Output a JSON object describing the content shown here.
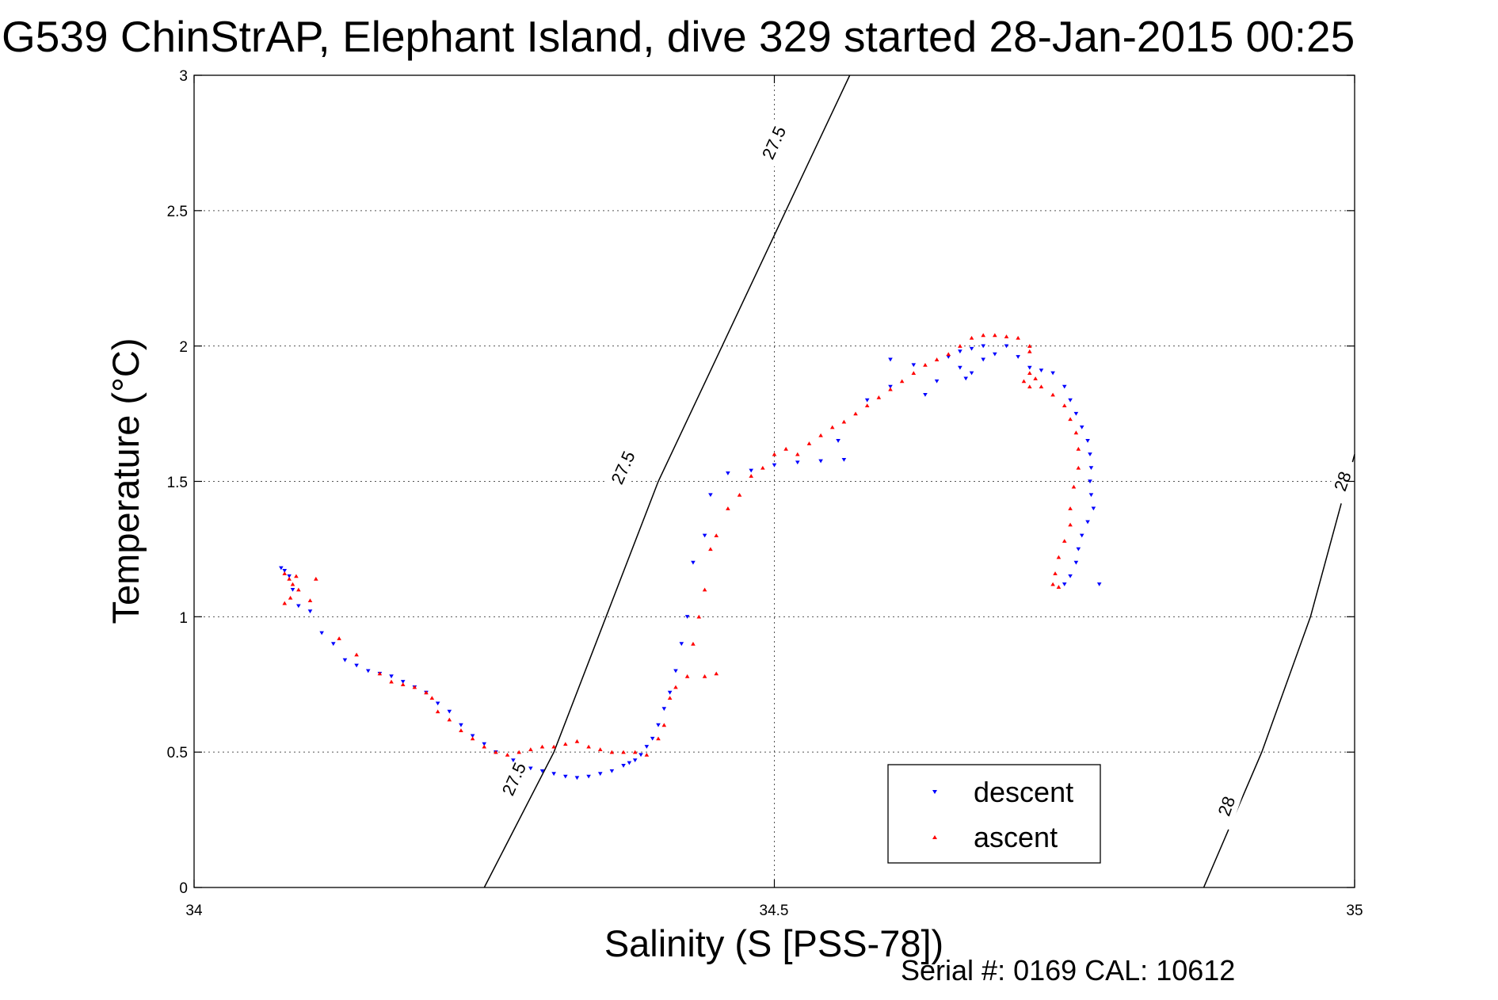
{
  "chart_data": {
    "type": "scatter",
    "title": "G539 ChinStrAP, Elephant Island, dive 329 started 28-Jan-2015 00:25",
    "xlabel": "Salinity (S [PSS-78])",
    "ylabel": "Temperature (°C)",
    "xlim": [
      34,
      35
    ],
    "ylim": [
      0,
      3
    ],
    "x_ticks": [
      "34",
      "34.5",
      "35"
    ],
    "y_ticks": [
      "0",
      "0.5",
      "1",
      "1.5",
      "2",
      "2.5",
      "3"
    ],
    "grid": true,
    "legend_position": "bottom-right",
    "footer": "Serial #: 0169 CAL: 10612",
    "colors": {
      "descent": "#0000ff",
      "ascent": "#ff0000",
      "contour": "#000000"
    },
    "density_contours": [
      {
        "label": "27.5",
        "points": [
          [
            34.25,
            0
          ],
          [
            34.31,
            0.5
          ],
          [
            34.355,
            1.0
          ],
          [
            34.4,
            1.5
          ],
          [
            34.455,
            2.0
          ],
          [
            34.51,
            2.5
          ],
          [
            34.565,
            3.0
          ]
        ],
        "label_positions": [
          [
            34.276,
            0.4
          ],
          [
            34.37,
            1.55
          ],
          [
            34.5,
            2.75
          ]
        ]
      },
      {
        "label": "28",
        "points": [
          [
            34.87,
            0
          ],
          [
            34.92,
            0.5
          ],
          [
            34.962,
            1.0
          ],
          [
            35.0,
            1.6
          ]
        ],
        "label_positions": [
          [
            34.89,
            0.3
          ],
          [
            34.99,
            1.5
          ]
        ]
      }
    ],
    "series": [
      {
        "name": "descent",
        "marker": "triangle-down",
        "points": [
          [
            34.075,
            1.18
          ],
          [
            34.078,
            1.17
          ],
          [
            34.082,
            1.15
          ],
          [
            34.085,
            1.1
          ],
          [
            34.09,
            1.04
          ],
          [
            34.1,
            1.02
          ],
          [
            34.11,
            0.94
          ],
          [
            34.12,
            0.9
          ],
          [
            34.13,
            0.84
          ],
          [
            34.14,
            0.82
          ],
          [
            34.15,
            0.8
          ],
          [
            34.16,
            0.79
          ],
          [
            34.17,
            0.78
          ],
          [
            34.18,
            0.76
          ],
          [
            34.19,
            0.74
          ],
          [
            34.2,
            0.72
          ],
          [
            34.21,
            0.68
          ],
          [
            34.22,
            0.65
          ],
          [
            34.23,
            0.6
          ],
          [
            34.24,
            0.56
          ],
          [
            34.25,
            0.53
          ],
          [
            34.26,
            0.5
          ],
          [
            34.275,
            0.47
          ],
          [
            34.29,
            0.44
          ],
          [
            34.3,
            0.43
          ],
          [
            34.31,
            0.42
          ],
          [
            34.32,
            0.41
          ],
          [
            34.33,
            0.405
          ],
          [
            34.34,
            0.41
          ],
          [
            34.35,
            0.42
          ],
          [
            34.36,
            0.43
          ],
          [
            34.37,
            0.45
          ],
          [
            34.375,
            0.46
          ],
          [
            34.38,
            0.47
          ],
          [
            34.385,
            0.49
          ],
          [
            34.39,
            0.52
          ],
          [
            34.395,
            0.55
          ],
          [
            34.4,
            0.6
          ],
          [
            34.405,
            0.66
          ],
          [
            34.41,
            0.72
          ],
          [
            34.415,
            0.8
          ],
          [
            34.42,
            0.9
          ],
          [
            34.425,
            1.0
          ],
          [
            34.43,
            1.2
          ],
          [
            34.44,
            1.3
          ],
          [
            34.445,
            1.45
          ],
          [
            34.46,
            1.53
          ],
          [
            34.48,
            1.54
          ],
          [
            34.5,
            1.56
          ],
          [
            34.52,
            1.57
          ],
          [
            34.54,
            1.575
          ],
          [
            34.56,
            1.58
          ],
          [
            34.555,
            1.65
          ],
          [
            34.58,
            1.8
          ],
          [
            34.6,
            1.85
          ],
          [
            34.6,
            1.95
          ],
          [
            34.62,
            1.93
          ],
          [
            34.63,
            1.82
          ],
          [
            34.64,
            1.87
          ],
          [
            34.65,
            1.96
          ],
          [
            34.66,
            1.98
          ],
          [
            34.67,
            1.99
          ],
          [
            34.68,
            2.0
          ],
          [
            34.66,
            1.92
          ],
          [
            34.665,
            1.88
          ],
          [
            34.67,
            1.9
          ],
          [
            34.68,
            1.95
          ],
          [
            34.69,
            1.97
          ],
          [
            34.7,
            2.0
          ],
          [
            34.71,
            1.96
          ],
          [
            34.72,
            1.92
          ],
          [
            34.73,
            1.91
          ],
          [
            34.74,
            1.9
          ],
          [
            34.75,
            1.85
          ],
          [
            34.755,
            1.8
          ],
          [
            34.76,
            1.75
          ],
          [
            34.765,
            1.7
          ],
          [
            34.77,
            1.65
          ],
          [
            34.772,
            1.6
          ],
          [
            34.773,
            1.55
          ],
          [
            34.772,
            1.5
          ],
          [
            34.773,
            1.45
          ],
          [
            34.775,
            1.4
          ],
          [
            34.77,
            1.35
          ],
          [
            34.765,
            1.3
          ],
          [
            34.762,
            1.25
          ],
          [
            34.76,
            1.2
          ],
          [
            34.755,
            1.15
          ],
          [
            34.75,
            1.12
          ],
          [
            34.78,
            1.12
          ]
        ]
      },
      {
        "name": "ascent",
        "marker": "triangle-up",
        "points": [
          [
            34.078,
            1.16
          ],
          [
            34.082,
            1.14
          ],
          [
            34.085,
            1.12
          ],
          [
            34.088,
            1.15
          ],
          [
            34.083,
            1.07
          ],
          [
            34.078,
            1.05
          ],
          [
            34.09,
            1.1
          ],
          [
            34.1,
            1.06
          ],
          [
            34.105,
            1.14
          ],
          [
            34.125,
            0.92
          ],
          [
            34.14,
            0.86
          ],
          [
            34.16,
            0.79
          ],
          [
            34.17,
            0.76
          ],
          [
            34.18,
            0.75
          ],
          [
            34.19,
            0.74
          ],
          [
            34.2,
            0.72
          ],
          [
            34.205,
            0.7
          ],
          [
            34.21,
            0.65
          ],
          [
            34.22,
            0.62
          ],
          [
            34.23,
            0.58
          ],
          [
            34.24,
            0.55
          ],
          [
            34.25,
            0.52
          ],
          [
            34.26,
            0.5
          ],
          [
            34.27,
            0.49
          ],
          [
            34.28,
            0.5
          ],
          [
            34.29,
            0.51
          ],
          [
            34.3,
            0.52
          ],
          [
            34.31,
            0.52
          ],
          [
            34.32,
            0.53
          ],
          [
            34.33,
            0.54
          ],
          [
            34.34,
            0.52
          ],
          [
            34.35,
            0.51
          ],
          [
            34.36,
            0.5
          ],
          [
            34.37,
            0.5
          ],
          [
            34.38,
            0.5
          ],
          [
            34.39,
            0.49
          ],
          [
            34.4,
            0.55
          ],
          [
            34.405,
            0.6
          ],
          [
            34.41,
            0.7
          ],
          [
            34.415,
            0.74
          ],
          [
            34.425,
            0.78
          ],
          [
            34.44,
            0.78
          ],
          [
            34.45,
            0.79
          ],
          [
            34.43,
            0.9
          ],
          [
            34.435,
            1.0
          ],
          [
            34.44,
            1.1
          ],
          [
            34.445,
            1.25
          ],
          [
            34.45,
            1.3
          ],
          [
            34.46,
            1.4
          ],
          [
            34.47,
            1.45
          ],
          [
            34.48,
            1.52
          ],
          [
            34.49,
            1.55
          ],
          [
            34.5,
            1.6
          ],
          [
            34.51,
            1.62
          ],
          [
            34.52,
            1.6
          ],
          [
            34.53,
            1.64
          ],
          [
            34.54,
            1.67
          ],
          [
            34.55,
            1.7
          ],
          [
            34.56,
            1.72
          ],
          [
            34.57,
            1.75
          ],
          [
            34.58,
            1.78
          ],
          [
            34.59,
            1.81
          ],
          [
            34.6,
            1.84
          ],
          [
            34.61,
            1.87
          ],
          [
            34.62,
            1.9
          ],
          [
            34.63,
            1.93
          ],
          [
            34.64,
            1.95
          ],
          [
            34.65,
            1.97
          ],
          [
            34.66,
            2.0
          ],
          [
            34.67,
            2.03
          ],
          [
            34.68,
            2.04
          ],
          [
            34.69,
            2.04
          ],
          [
            34.7,
            2.035
          ],
          [
            34.71,
            2.03
          ],
          [
            34.72,
            2.0
          ],
          [
            34.72,
            1.98
          ],
          [
            34.72,
            1.9
          ],
          [
            34.715,
            1.87
          ],
          [
            34.72,
            1.85
          ],
          [
            34.725,
            1.88
          ],
          [
            34.73,
            1.85
          ],
          [
            34.74,
            1.82
          ],
          [
            34.75,
            1.78
          ],
          [
            34.755,
            1.73
          ],
          [
            34.76,
            1.68
          ],
          [
            34.762,
            1.62
          ],
          [
            34.762,
            1.55
          ],
          [
            34.758,
            1.48
          ],
          [
            34.755,
            1.4
          ],
          [
            34.755,
            1.34
          ],
          [
            34.75,
            1.28
          ],
          [
            34.745,
            1.22
          ],
          [
            34.742,
            1.16
          ],
          [
            34.74,
            1.12
          ],
          [
            34.745,
            1.11
          ]
        ]
      }
    ]
  }
}
